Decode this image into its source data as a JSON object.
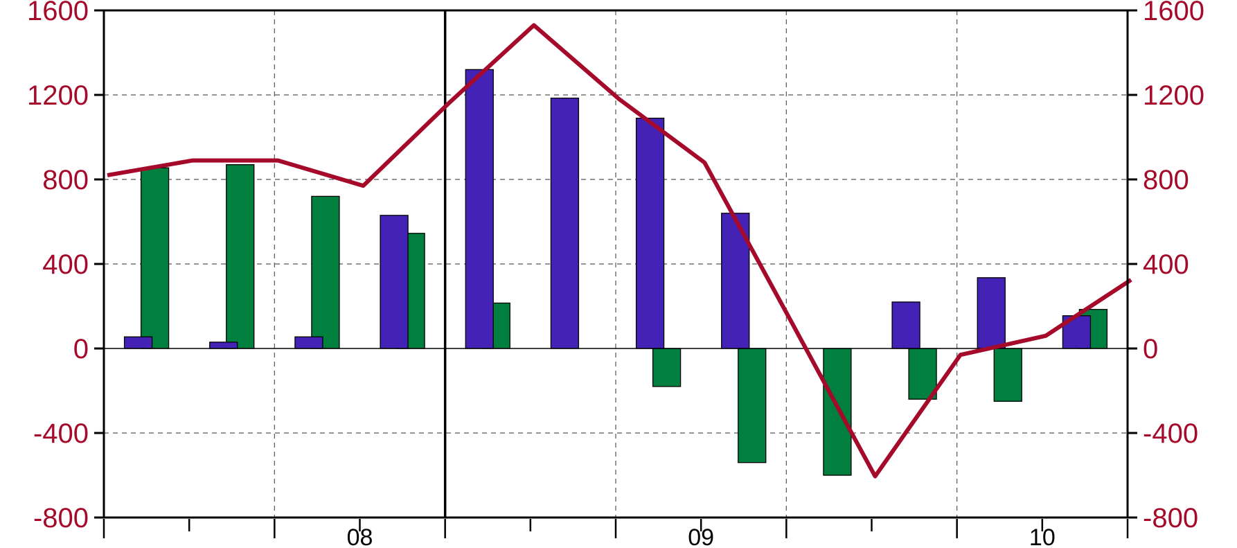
{
  "chart_data": {
    "type": "bar",
    "title": "",
    "xlabel": "",
    "ylabel": "",
    "ylim": [
      -800,
      1600
    ],
    "yticks": [
      -800,
      -400,
      0,
      400,
      800,
      1200,
      1600
    ],
    "ytick_labels": [
      "-800",
      "-400",
      "0",
      "400",
      "800",
      "1200",
      "1600"
    ],
    "x_labels": [
      "08",
      "09",
      "10"
    ],
    "grid": true,
    "legend": "none",
    "periods": 12,
    "series": [
      {
        "kind": "bar",
        "color": "#4422b5",
        "values": [
          55,
          30,
          55,
          630,
          1320,
          1185,
          1090,
          640,
          0,
          220,
          335,
          155
        ]
      },
      {
        "kind": "bar",
        "color": "#007f3f",
        "values": [
          855,
          870,
          720,
          545,
          215,
          0,
          -180,
          -540,
          -600,
          -240,
          -250,
          185
        ]
      },
      {
        "kind": "line",
        "color": "#a50a2a",
        "values": [
          820,
          890,
          890,
          770,
          1160,
          1530,
          1180,
          880,
          140,
          -605,
          -30,
          60,
          325
        ]
      }
    ]
  },
  "colors": {
    "axis": "#000000",
    "tick_label": "#a50a2a"
  }
}
